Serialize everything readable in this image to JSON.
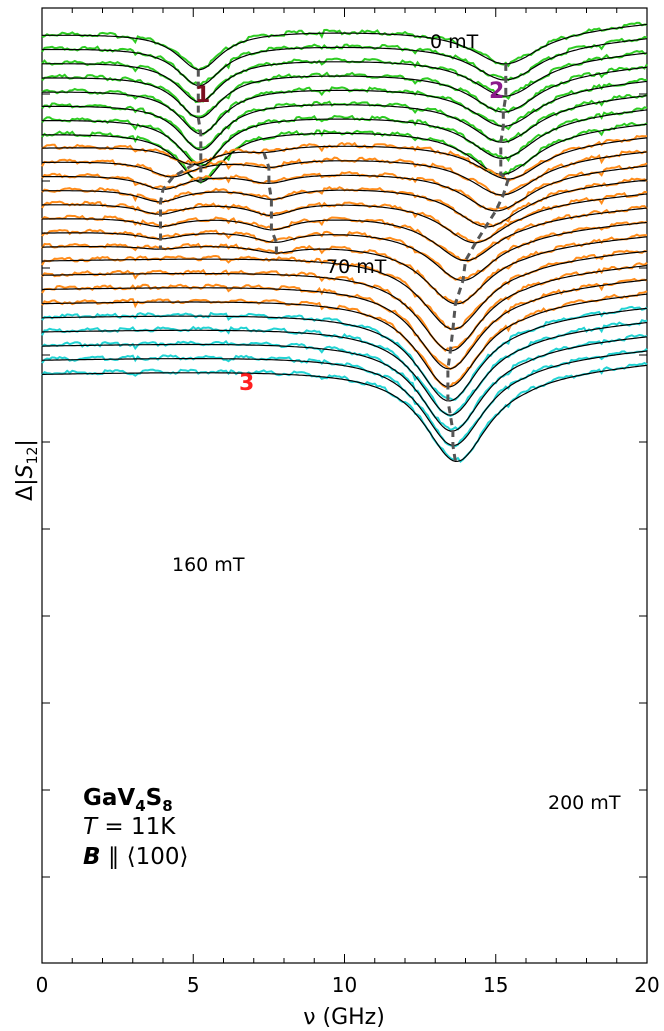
{
  "chart_data": {
    "type": "line",
    "xlabel": "ν (GHz)",
    "ylabel": "Δ|S12|",
    "xlim": [
      0,
      20
    ],
    "xticks": [
      "0",
      "5",
      "10",
      "15",
      "20"
    ],
    "grid": false,
    "colors": {
      "low_field": "#2ecc22",
      "mid_field": "#ff8c1a",
      "high_field": "#22d3d3",
      "fit": "#000000",
      "guide": "#555555",
      "mode1": "#7a1020",
      "mode2": "#8b1a8b",
      "mode3": "#ff2020"
    },
    "annotations": {
      "field_0": "0 mT",
      "field_70": "70 mT",
      "field_160": "160 mT",
      "field_200": "200 mT",
      "mode1": "1",
      "mode2": "2",
      "mode3": "3"
    },
    "info": {
      "material_main": "GaV",
      "material_sub1": "4",
      "material_mid": "S",
      "material_sub2": "8",
      "temp_italic": "T",
      "temp_rest": " = 11K",
      "field_bold": "B",
      "field_rest": " ∥ ⟨100⟩"
    },
    "series": [
      {
        "group": "low",
        "peaks": [
          {
            "f": 5.2,
            "a": 1.0
          },
          {
            "f": 15.3,
            "a": 0.85
          }
        ]
      },
      {
        "group": "low",
        "peaks": [
          {
            "f": 5.2,
            "a": 1.05
          },
          {
            "f": 15.3,
            "a": 0.9
          }
        ]
      },
      {
        "group": "low",
        "peaks": [
          {
            "f": 5.2,
            "a": 1.1
          },
          {
            "f": 15.3,
            "a": 0.95
          }
        ]
      },
      {
        "group": "low",
        "peaks": [
          {
            "f": 5.2,
            "a": 1.15
          },
          {
            "f": 15.25,
            "a": 1.0
          }
        ]
      },
      {
        "group": "low",
        "peaks": [
          {
            "f": 5.25,
            "a": 1.2
          },
          {
            "f": 15.25,
            "a": 1.0
          }
        ]
      },
      {
        "group": "low",
        "peaks": [
          {
            "f": 5.25,
            "a": 1.25
          },
          {
            "f": 15.2,
            "a": 1.05
          }
        ]
      },
      {
        "group": "low",
        "peaks": [
          {
            "f": 5.25,
            "a": 1.3
          },
          {
            "f": 15.2,
            "a": 1.1
          }
        ]
      },
      {
        "group": "low",
        "peaks": [
          {
            "f": 5.25,
            "a": 1.35
          },
          {
            "f": 15.2,
            "a": 1.15
          }
        ]
      },
      {
        "group": "mid",
        "peaks": [
          {
            "f": 5.0,
            "a": 0.5
          },
          {
            "f": 7.4,
            "a": 0.15
          },
          {
            "f": 15.4,
            "a": 0.9
          }
        ]
      },
      {
        "group": "mid",
        "peaks": [
          {
            "f": 4.3,
            "a": 0.45
          },
          {
            "f": 7.5,
            "a": 0.2
          },
          {
            "f": 15.2,
            "a": 0.95
          }
        ]
      },
      {
        "group": "mid",
        "peaks": [
          {
            "f": 4.0,
            "a": 0.4
          },
          {
            "f": 7.5,
            "a": 0.25
          },
          {
            "f": 15.0,
            "a": 1.0
          }
        ]
      },
      {
        "group": "mid",
        "peaks": [
          {
            "f": 3.9,
            "a": 0.35
          },
          {
            "f": 7.6,
            "a": 0.3
          },
          {
            "f": 14.7,
            "a": 1.05
          }
        ]
      },
      {
        "group": "mid",
        "peaks": [
          {
            "f": 3.9,
            "a": 0.3
          },
          {
            "f": 7.6,
            "a": 0.35
          },
          {
            "f": 14.3,
            "a": 1.1
          }
        ]
      },
      {
        "group": "mid",
        "peaks": [
          {
            "f": 3.9,
            "a": 0.25
          },
          {
            "f": 7.6,
            "a": 0.35
          },
          {
            "f": 14.0,
            "a": 1.2
          }
        ]
      },
      {
        "group": "mid",
        "peaks": [
          {
            "f": 3.9,
            "a": 0.2
          },
          {
            "f": 7.7,
            "a": 0.3
          },
          {
            "f": 13.9,
            "a": 1.35
          }
        ]
      },
      {
        "group": "mid",
        "peaks": [
          {
            "f": 3.9,
            "a": 0.1
          },
          {
            "f": 7.7,
            "a": 0.2
          },
          {
            "f": 13.7,
            "a": 1.6
          }
        ]
      },
      {
        "group": "mid",
        "peaks": [
          {
            "f": 13.6,
            "a": 1.9
          }
        ]
      },
      {
        "group": "mid",
        "peaks": [
          {
            "f": 13.5,
            "a": 2.1
          }
        ]
      },
      {
        "group": "mid",
        "peaks": [
          {
            "f": 13.45,
            "a": 2.2
          }
        ]
      },
      {
        "group": "mid",
        "peaks": [
          {
            "f": 13.45,
            "a": 2.3
          }
        ]
      },
      {
        "group": "high",
        "peaks": [
          {
            "f": 13.45,
            "a": 2.3
          }
        ]
      },
      {
        "group": "high",
        "peaks": [
          {
            "f": 13.5,
            "a": 2.3
          }
        ]
      },
      {
        "group": "high",
        "peaks": [
          {
            "f": 13.55,
            "a": 2.35
          }
        ]
      },
      {
        "group": "high",
        "peaks": [
          {
            "f": 13.6,
            "a": 2.35
          }
        ]
      },
      {
        "group": "high",
        "peaks": [
          {
            "f": 13.7,
            "a": 2.4
          }
        ]
      }
    ]
  }
}
